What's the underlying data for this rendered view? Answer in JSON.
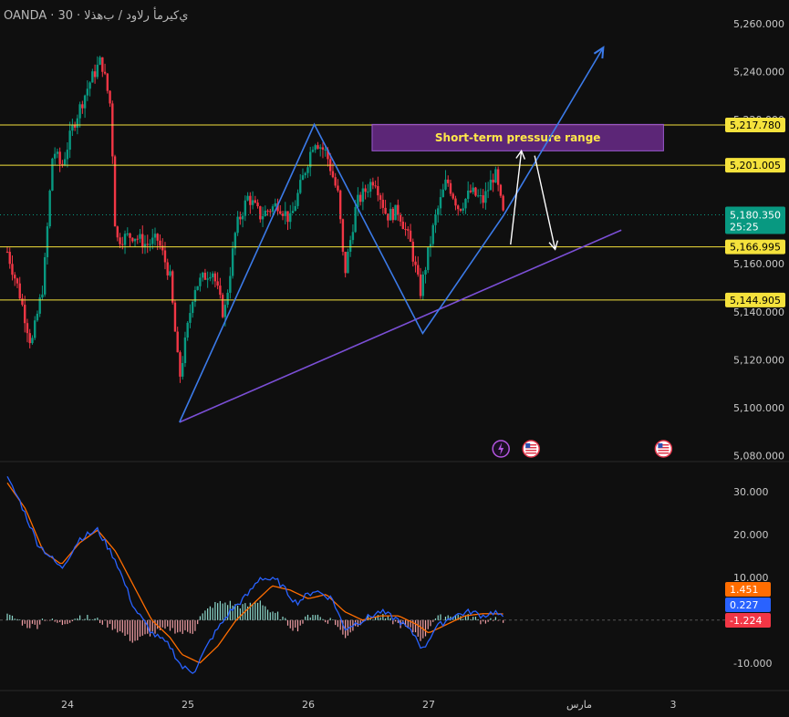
{
  "header": {
    "broker": "OANDA",
    "separator": "·",
    "timeframe": "30",
    "symbol_name": "ي‌كيرمأ رلاود / ب‌هذلا"
  },
  "colors": {
    "background": "#0f0f0f",
    "bull": "#089981",
    "bear": "#f23645",
    "level_line": "#f5e23c",
    "wave_line": "#3b7ae8",
    "trend_line": "#7b4fd6",
    "arrow": "#ffffff",
    "macd": "#2962ff",
    "signal": "#ff6d00",
    "hist_pos": "#8fdccf",
    "hist_neg": "#f5a1a8",
    "box_fill": "#6a2a8a",
    "box_text": "#ffe84a"
  },
  "chart_data": [
    {
      "type": "candlestick",
      "title": "",
      "x_ticks": [
        "24",
        "25",
        "26",
        "27",
        "مارس",
        "3"
      ],
      "y_ticks": [
        "5,260.000",
        "5,240.000",
        "5,220.000",
        "5,200.000",
        "5,180.000",
        "5,160.000",
        "5,140.000",
        "5,120.000",
        "5,100.000",
        "5,080.000"
      ],
      "ylim": [
        5078,
        5266
      ],
      "horizontal_levels": [
        {
          "label": "5,217.780",
          "value": 5217.78
        },
        {
          "label": "5,201.005",
          "value": 5201.005
        },
        {
          "label": "5,166.995",
          "value": 5166.995
        },
        {
          "label": "5,144.905",
          "value": 5144.905
        }
      ],
      "current_price": {
        "label": "5,180.350",
        "value": 5180.35,
        "countdown": "25:25"
      },
      "annotation_box": {
        "text": "Short-term pressure range",
        "range": [
          5207,
          5218
        ]
      },
      "event_icons": [
        "lightning-icon",
        "us-flag-icon",
        "us-flag-icon"
      ],
      "wave_pattern_points": [
        [
          24.93,
          5094
        ],
        [
          26.05,
          5218
        ],
        [
          26.95,
          5131
        ],
        [
          27.62,
          5180
        ],
        [
          28.45,
          5250
        ]
      ],
      "rising_trendline": [
        [
          24.93,
          5094
        ],
        [
          28.6,
          5174
        ]
      ],
      "projection_arrows": [
        {
          "from": [
            27.68,
            5168
          ],
          "to": [
            27.77,
            5207
          ]
        },
        {
          "from": [
            27.88,
            5205
          ],
          "to": [
            28.05,
            5166
          ]
        }
      ],
      "price_anchors": [
        [
          23.5,
          5165
        ],
        [
          23.6,
          5148
        ],
        [
          23.7,
          5126
        ],
        [
          23.8,
          5152
        ],
        [
          23.88,
          5208
        ],
        [
          23.95,
          5200
        ],
        [
          24.05,
          5218
        ],
        [
          24.18,
          5235
        ],
        [
          24.28,
          5245
        ],
        [
          24.36,
          5225
        ],
        [
          24.4,
          5170
        ],
        [
          24.55,
          5172
        ],
        [
          24.65,
          5168
        ],
        [
          24.75,
          5170
        ],
        [
          24.85,
          5155
        ],
        [
          24.93,
          5112
        ],
        [
          25.05,
          5150
        ],
        [
          25.2,
          5158
        ],
        [
          25.3,
          5138
        ],
        [
          25.4,
          5175
        ],
        [
          25.5,
          5188
        ],
        [
          25.6,
          5180
        ],
        [
          25.75,
          5185
        ],
        [
          25.85,
          5178
        ],
        [
          25.95,
          5195
        ],
        [
          26.05,
          5212
        ],
        [
          26.15,
          5206
        ],
        [
          26.25,
          5188
        ],
        [
          26.3,
          5155
        ],
        [
          26.4,
          5185
        ],
        [
          26.55,
          5196
        ],
        [
          26.65,
          5180
        ],
        [
          26.75,
          5182
        ],
        [
          26.85,
          5168
        ],
        [
          26.93,
          5148
        ],
        [
          27.05,
          5178
        ],
        [
          27.15,
          5195
        ],
        [
          27.25,
          5183
        ],
        [
          27.35,
          5190
        ],
        [
          27.45,
          5186
        ],
        [
          27.55,
          5198
        ],
        [
          27.62,
          5180
        ]
      ]
    },
    {
      "type": "macd",
      "title": "",
      "y_ticks": [
        "30.000",
        "20.000",
        "10.000",
        "-10.000"
      ],
      "ylim": [
        -16,
        34
      ],
      "values": {
        "histogram": "-1.224",
        "macd": "0.227",
        "signal": "1.451"
      },
      "macd_anchors": [
        [
          23.5,
          33
        ],
        [
          23.6,
          28
        ],
        [
          23.75,
          18
        ],
        [
          23.95,
          12
        ],
        [
          24.1,
          19
        ],
        [
          24.25,
          21
        ],
        [
          24.4,
          14
        ],
        [
          24.55,
          3
        ],
        [
          24.7,
          -3
        ],
        [
          24.85,
          -6
        ],
        [
          24.95,
          -11
        ],
        [
          25.05,
          -12
        ],
        [
          25.2,
          -4
        ],
        [
          25.35,
          2
        ],
        [
          25.5,
          6
        ],
        [
          25.6,
          10
        ],
        [
          25.75,
          9
        ],
        [
          25.9,
          4
        ],
        [
          26.05,
          7
        ],
        [
          26.2,
          5
        ],
        [
          26.3,
          -2
        ],
        [
          26.45,
          0
        ],
        [
          26.6,
          2
        ],
        [
          26.75,
          0
        ],
        [
          26.9,
          -4
        ],
        [
          26.95,
          -7
        ],
        [
          27.05,
          -2
        ],
        [
          27.2,
          1
        ],
        [
          27.35,
          2
        ],
        [
          27.45,
          1
        ],
        [
          27.55,
          2
        ],
        [
          27.62,
          0.2
        ]
      ],
      "signal_anchors": [
        [
          23.5,
          32
        ],
        [
          23.65,
          26
        ],
        [
          23.8,
          16
        ],
        [
          23.95,
          13
        ],
        [
          24.1,
          18
        ],
        [
          24.25,
          21
        ],
        [
          24.4,
          16
        ],
        [
          24.55,
          8
        ],
        [
          24.7,
          0
        ],
        [
          24.85,
          -4
        ],
        [
          24.95,
          -8
        ],
        [
          25.1,
          -10
        ],
        [
          25.25,
          -6
        ],
        [
          25.4,
          0
        ],
        [
          25.55,
          4
        ],
        [
          25.7,
          8
        ],
        [
          25.85,
          7
        ],
        [
          26.0,
          5
        ],
        [
          26.15,
          6
        ],
        [
          26.3,
          2
        ],
        [
          26.45,
          0
        ],
        [
          26.6,
          1
        ],
        [
          26.75,
          1
        ],
        [
          26.9,
          -1
        ],
        [
          27.0,
          -3
        ],
        [
          27.15,
          -1
        ],
        [
          27.3,
          1
        ],
        [
          27.45,
          1.5
        ],
        [
          27.62,
          1.45
        ]
      ]
    }
  ]
}
